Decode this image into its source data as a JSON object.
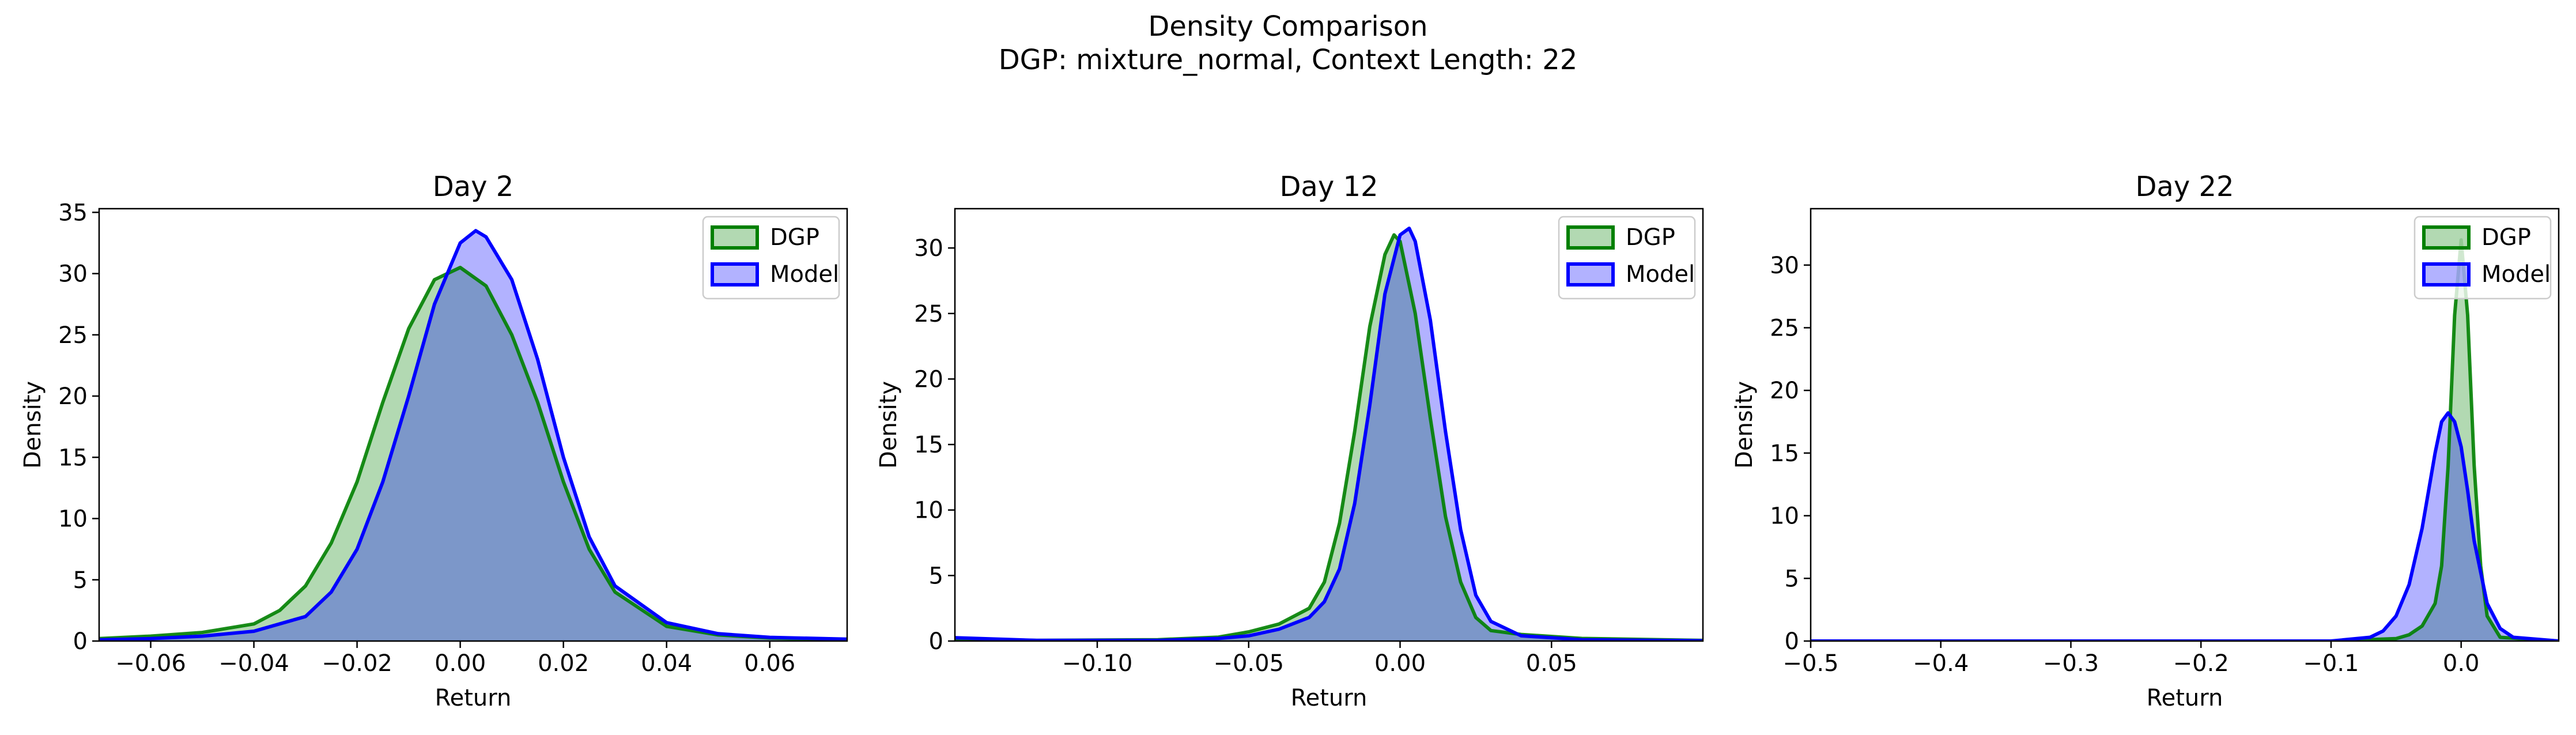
{
  "figure": {
    "title_line1": "Density Comparison",
    "title_line2": "DGP: mixture_normal, Context Length: 22"
  },
  "colors": {
    "dgp": "#008000",
    "model": "#0000ff",
    "overlap_fill": "#7f98c8"
  },
  "chart_data": [
    {
      "type": "area",
      "title": "Day 2",
      "xlabel": "Return",
      "ylabel": "Density",
      "xlim": [
        -0.07,
        0.075
      ],
      "ylim": [
        0,
        35.3
      ],
      "xticks": [
        -0.06,
        -0.04,
        -0.02,
        0.0,
        0.02,
        0.04,
        0.06
      ],
      "xtick_labels": [
        "−0.06",
        "−0.04",
        "−0.02",
        "0.00",
        "0.02",
        "0.04",
        "0.06"
      ],
      "yticks": [
        0,
        5,
        10,
        15,
        20,
        25,
        30,
        35
      ],
      "legend": "top-right",
      "series": [
        {
          "name": "DGP",
          "x": [
            -0.07,
            -0.06,
            -0.05,
            -0.04,
            -0.035,
            -0.03,
            -0.025,
            -0.02,
            -0.015,
            -0.01,
            -0.005,
            0.0,
            0.005,
            0.01,
            0.015,
            0.02,
            0.025,
            0.03,
            0.04,
            0.05,
            0.06,
            0.075
          ],
          "y": [
            0.2,
            0.4,
            0.7,
            1.4,
            2.5,
            4.5,
            8.0,
            13.0,
            19.5,
            25.5,
            29.5,
            30.5,
            29.0,
            25.0,
            19.5,
            13.0,
            7.5,
            4.0,
            1.2,
            0.5,
            0.25,
            0.1
          ]
        },
        {
          "name": "Model",
          "x": [
            -0.07,
            -0.06,
            -0.05,
            -0.04,
            -0.03,
            -0.025,
            -0.02,
            -0.015,
            -0.01,
            -0.005,
            0.0,
            0.003,
            0.005,
            0.01,
            0.015,
            0.02,
            0.025,
            0.03,
            0.04,
            0.05,
            0.06,
            0.075
          ],
          "y": [
            0.1,
            0.2,
            0.4,
            0.8,
            2.0,
            4.0,
            7.5,
            13.0,
            20.0,
            27.5,
            32.5,
            33.5,
            33.0,
            29.5,
            23.0,
            15.0,
            8.5,
            4.5,
            1.5,
            0.6,
            0.3,
            0.15
          ]
        }
      ]
    },
    {
      "type": "area",
      "title": "Day 12",
      "xlabel": "Return",
      "ylabel": "Density",
      "xlim": [
        -0.147,
        0.1
      ],
      "ylim": [
        0,
        33.0
      ],
      "xticks": [
        -0.1,
        -0.05,
        0.0,
        0.05
      ],
      "xtick_labels": [
        "−0.10",
        "−0.05",
        "0.00",
        "0.05"
      ],
      "yticks": [
        0,
        5,
        10,
        15,
        20,
        25,
        30
      ],
      "legend": "top-right",
      "series": [
        {
          "name": "DGP",
          "x": [
            -0.147,
            -0.12,
            -0.08,
            -0.06,
            -0.05,
            -0.04,
            -0.03,
            -0.025,
            -0.02,
            -0.015,
            -0.01,
            -0.005,
            -0.002,
            0.0,
            0.005,
            0.01,
            0.015,
            0.02,
            0.025,
            0.03,
            0.04,
            0.06,
            0.1
          ],
          "y": [
            0.15,
            0.05,
            0.1,
            0.3,
            0.7,
            1.3,
            2.5,
            4.5,
            9.0,
            16.0,
            24.0,
            29.5,
            31.0,
            30.5,
            25.0,
            17.0,
            9.5,
            4.5,
            1.8,
            0.8,
            0.5,
            0.2,
            0.05
          ]
        },
        {
          "name": "Model",
          "x": [
            -0.147,
            -0.12,
            -0.08,
            -0.06,
            -0.05,
            -0.04,
            -0.03,
            -0.025,
            -0.02,
            -0.015,
            -0.01,
            -0.005,
            0.0,
            0.003,
            0.005,
            0.01,
            0.015,
            0.02,
            0.025,
            0.03,
            0.04,
            0.06,
            0.1
          ],
          "y": [
            0.25,
            0.05,
            0.05,
            0.2,
            0.4,
            0.9,
            1.8,
            3.0,
            5.5,
            10.5,
            18.0,
            26.5,
            31.0,
            31.5,
            30.5,
            24.5,
            16.0,
            8.5,
            3.5,
            1.5,
            0.4,
            0.1,
            0.02
          ]
        }
      ]
    },
    {
      "type": "area",
      "title": "Day 22",
      "xlabel": "Return",
      "ylabel": "Density",
      "xlim": [
        -0.5,
        0.075
      ],
      "ylim": [
        0,
        34.5
      ],
      "xticks": [
        -0.5,
        -0.4,
        -0.3,
        -0.2,
        -0.1,
        0.0
      ],
      "xtick_labels": [
        "−0.5",
        "−0.4",
        "−0.3",
        "−0.2",
        "−0.1",
        "0.0"
      ],
      "yticks": [
        0,
        5,
        10,
        15,
        20,
        25,
        30
      ],
      "legend": "top-right",
      "series": [
        {
          "name": "DGP",
          "x": [
            -0.5,
            -0.1,
            -0.05,
            -0.04,
            -0.03,
            -0.02,
            -0.015,
            -0.01,
            -0.005,
            0.0,
            0.005,
            0.01,
            0.015,
            0.02,
            0.03,
            0.075
          ],
          "y": [
            0.0,
            0.0,
            0.2,
            0.5,
            1.2,
            3.0,
            6.0,
            14.0,
            26.0,
            32.0,
            26.0,
            14.0,
            6.0,
            2.0,
            0.3,
            0.0
          ]
        },
        {
          "name": "Model",
          "x": [
            -0.5,
            -0.1,
            -0.07,
            -0.06,
            -0.05,
            -0.04,
            -0.03,
            -0.02,
            -0.015,
            -0.01,
            -0.005,
            0.0,
            0.005,
            0.01,
            0.02,
            0.03,
            0.04,
            0.075
          ],
          "y": [
            0.0,
            0.0,
            0.3,
            0.8,
            2.0,
            4.5,
            9.0,
            15.0,
            17.5,
            18.2,
            17.5,
            15.5,
            12.0,
            8.0,
            3.0,
            1.0,
            0.3,
            0.0
          ]
        }
      ]
    }
  ]
}
